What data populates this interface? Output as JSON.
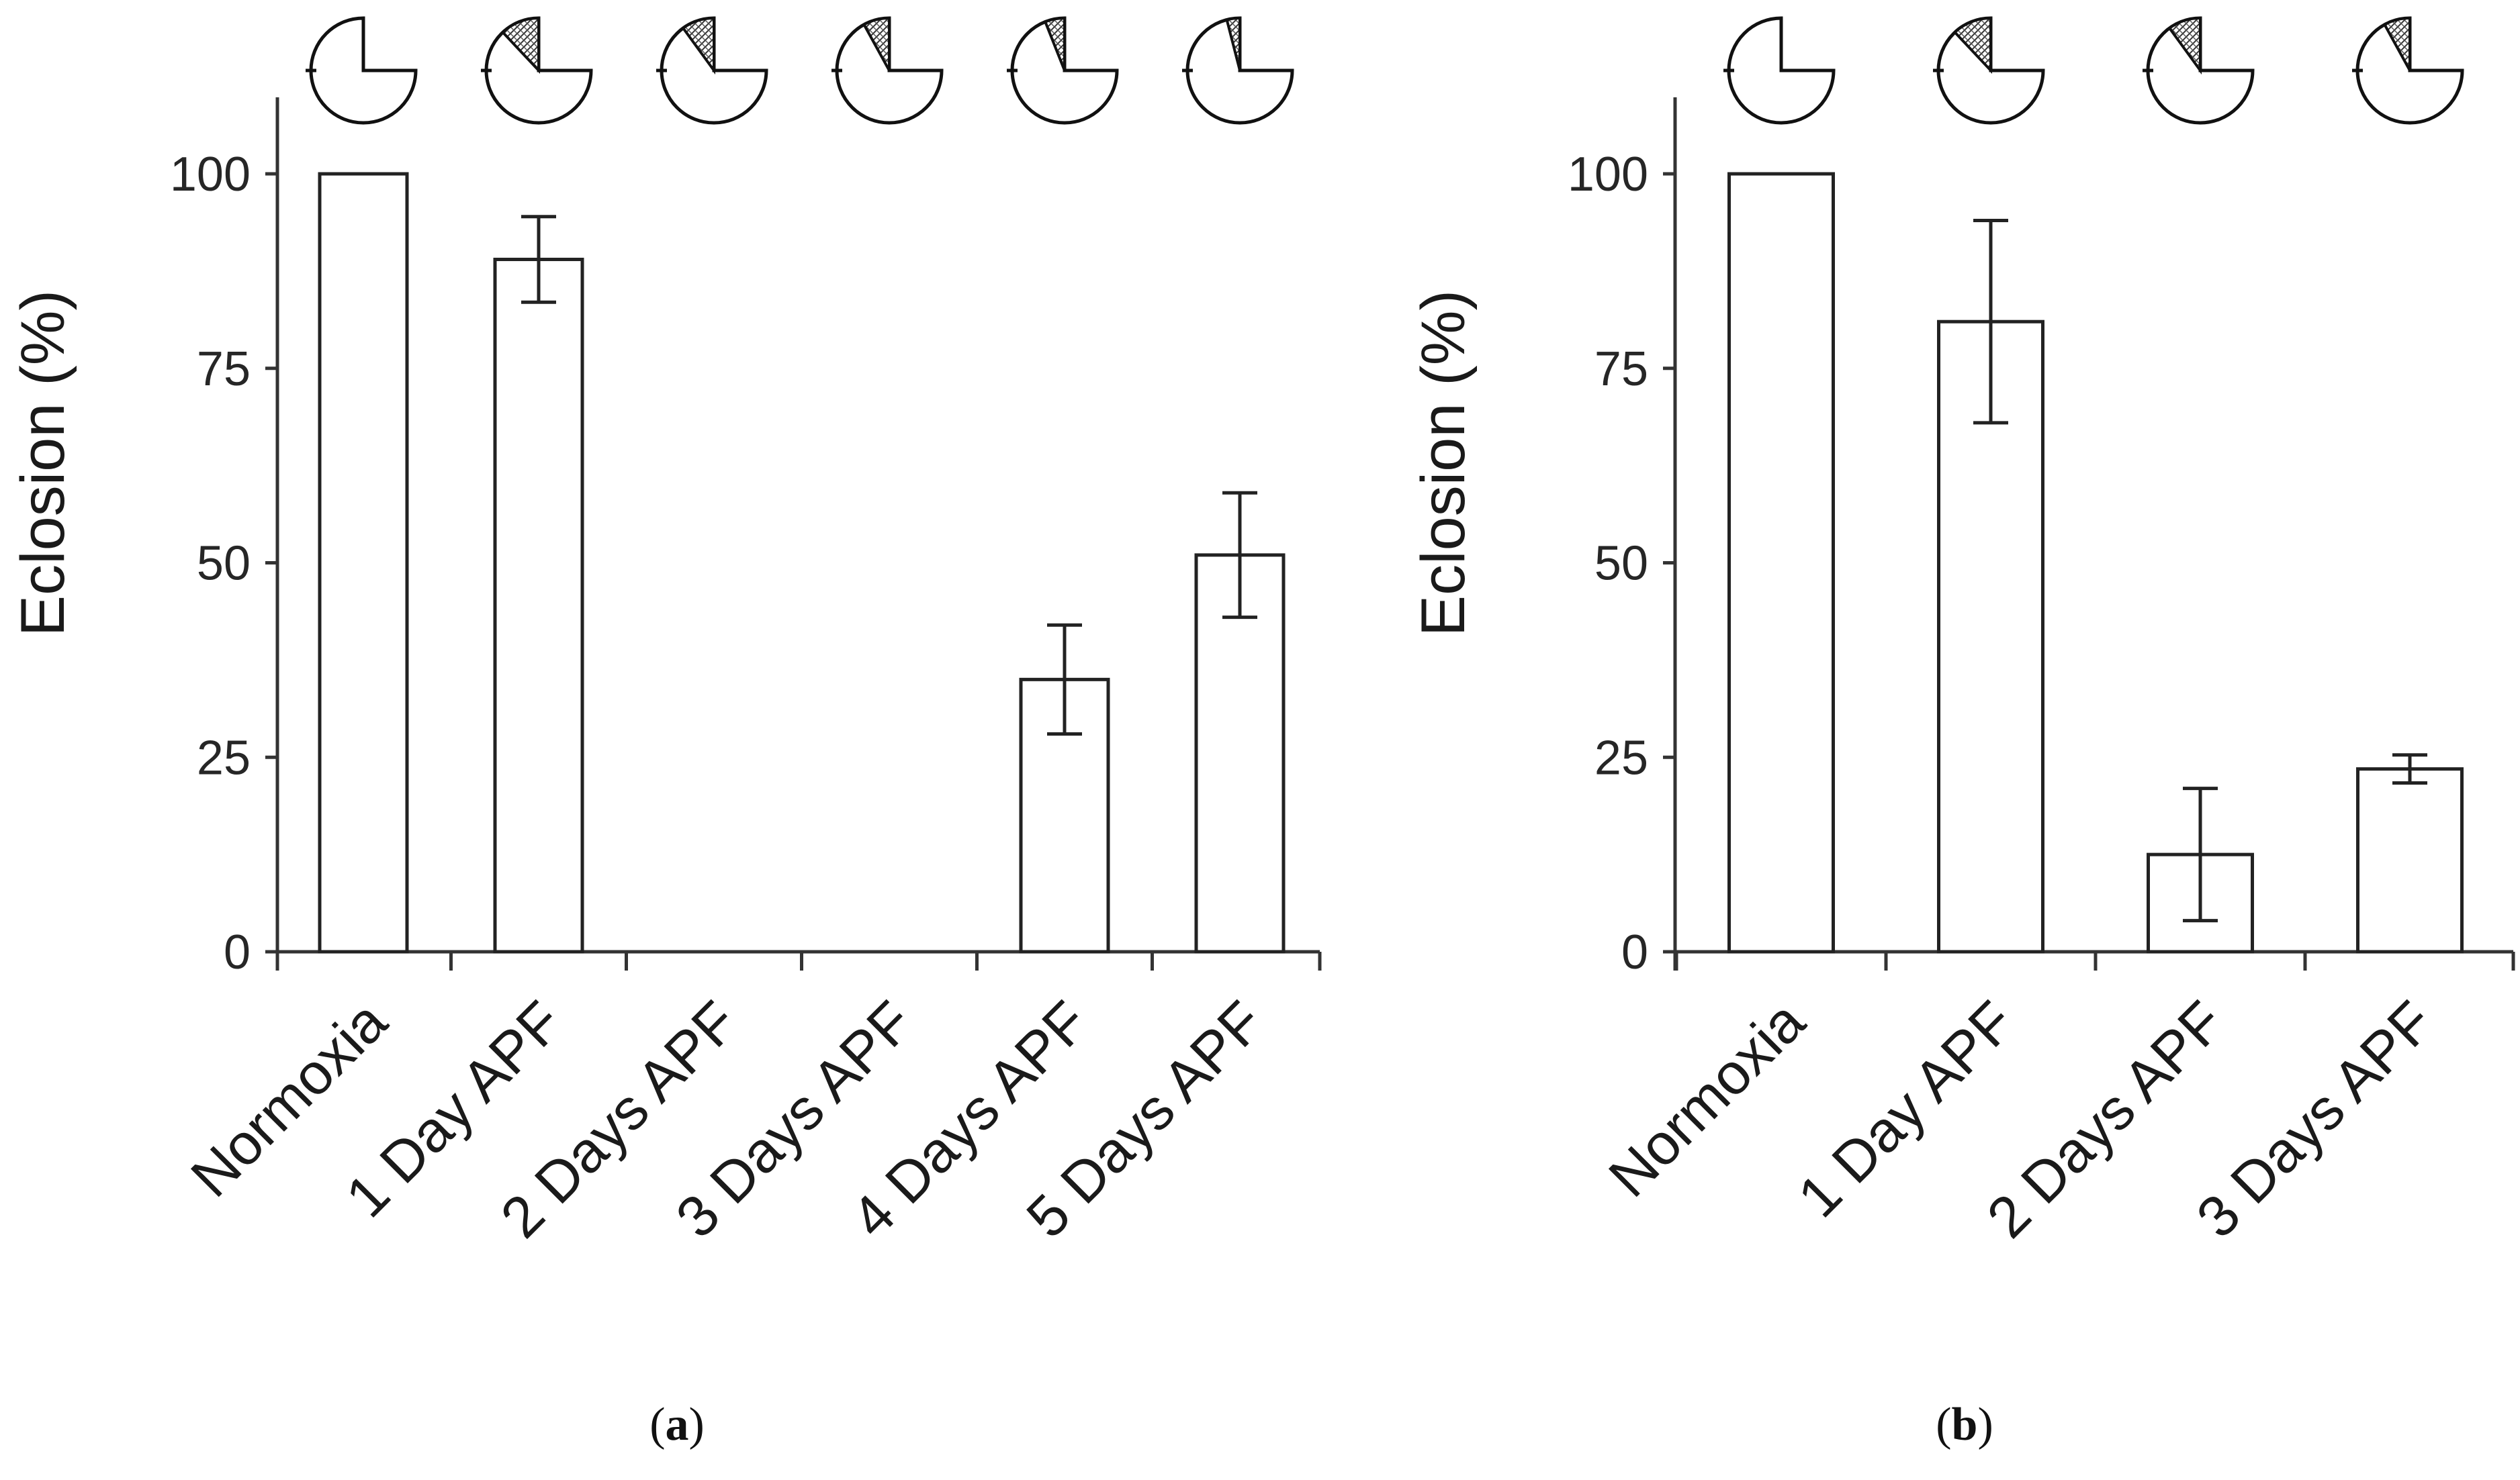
{
  "chart_data": [
    {
      "id": "a",
      "type": "bar",
      "panel_label": "a",
      "ylabel": "Eclosion (%)",
      "ylim": [
        0,
        110
      ],
      "yticks": [
        0,
        25,
        50,
        75,
        100
      ],
      "categories": [
        "Normoxia",
        "1 Day APF",
        "2 Days APF",
        "3 Days APF",
        "4 Days APF",
        "5 Days APF"
      ],
      "values": [
        100,
        89,
        0,
        0,
        35,
        51
      ],
      "errors": [
        0,
        5.5,
        0,
        0,
        7,
        8
      ],
      "hatched_fraction": [
        0,
        0.12,
        0.1,
        0.08,
        0.06,
        0.04
      ],
      "bar_color": "#ffffff",
      "edge_color": "#222222"
    },
    {
      "id": "b",
      "type": "bar",
      "panel_label": "b",
      "ylabel": "Eclosion (%)",
      "ylim": [
        0,
        110
      ],
      "yticks": [
        0,
        25,
        50,
        75,
        100
      ],
      "categories": [
        "Normoxia",
        "1 Day APF",
        "2 Days APF",
        "3 Days APF"
      ],
      "values": [
        100,
        81,
        12.5,
        23.5
      ],
      "errors": [
        0,
        13,
        8.5,
        1.8
      ],
      "hatched_fraction": [
        0,
        0.12,
        0.1,
        0.08
      ],
      "bar_color": "#ffffff",
      "edge_color": "#222222"
    }
  ]
}
